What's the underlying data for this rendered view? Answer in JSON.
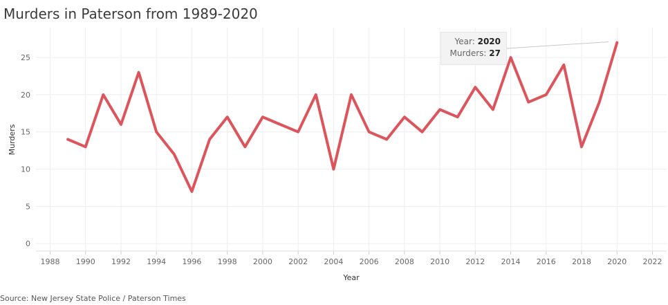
{
  "title": "Murders in Paterson from 1989-2020",
  "source": "Source: New Jersey State Police / Paterson Times",
  "tooltip": {
    "year_label": "Year:",
    "year_value": "2020",
    "murders_label": "Murders:",
    "murders_value": "27"
  },
  "colors": {
    "line": "#dd555c",
    "grid": "#eeeeee",
    "tooltip_bg": "#f3f3f3"
  },
  "chart_data": {
    "type": "line",
    "title": "Murders in Paterson from 1989-2020",
    "xlabel": "Year",
    "ylabel": "Murders",
    "xlim": [
      1987.2,
      2022.8
    ],
    "ylim": [
      -1,
      29
    ],
    "x_ticks": [
      1988,
      1990,
      1992,
      1994,
      1996,
      1998,
      2000,
      2002,
      2004,
      2006,
      2008,
      2010,
      2012,
      2014,
      2016,
      2018,
      2020,
      2022
    ],
    "y_ticks": [
      0,
      5,
      10,
      15,
      20,
      25
    ],
    "grid": true,
    "series": [
      {
        "x": [
          1989,
          1990,
          1991,
          1992,
          1993,
          1994,
          1995,
          1996,
          1997,
          1998,
          1999,
          2000,
          2001,
          2002,
          2003,
          2004,
          2005,
          2006,
          2007,
          2008,
          2009,
          2010,
          2011,
          2012,
          2013,
          2014,
          2015,
          2016,
          2017,
          2018,
          2019,
          2020
        ],
        "values": [
          14,
          13,
          20,
          16,
          23,
          15,
          12,
          7,
          14,
          17,
          13,
          17,
          16,
          15,
          20,
          10,
          20,
          15,
          14,
          17,
          15,
          18,
          17,
          21,
          18,
          25,
          19,
          20,
          24,
          13,
          19,
          27
        ]
      }
    ]
  }
}
